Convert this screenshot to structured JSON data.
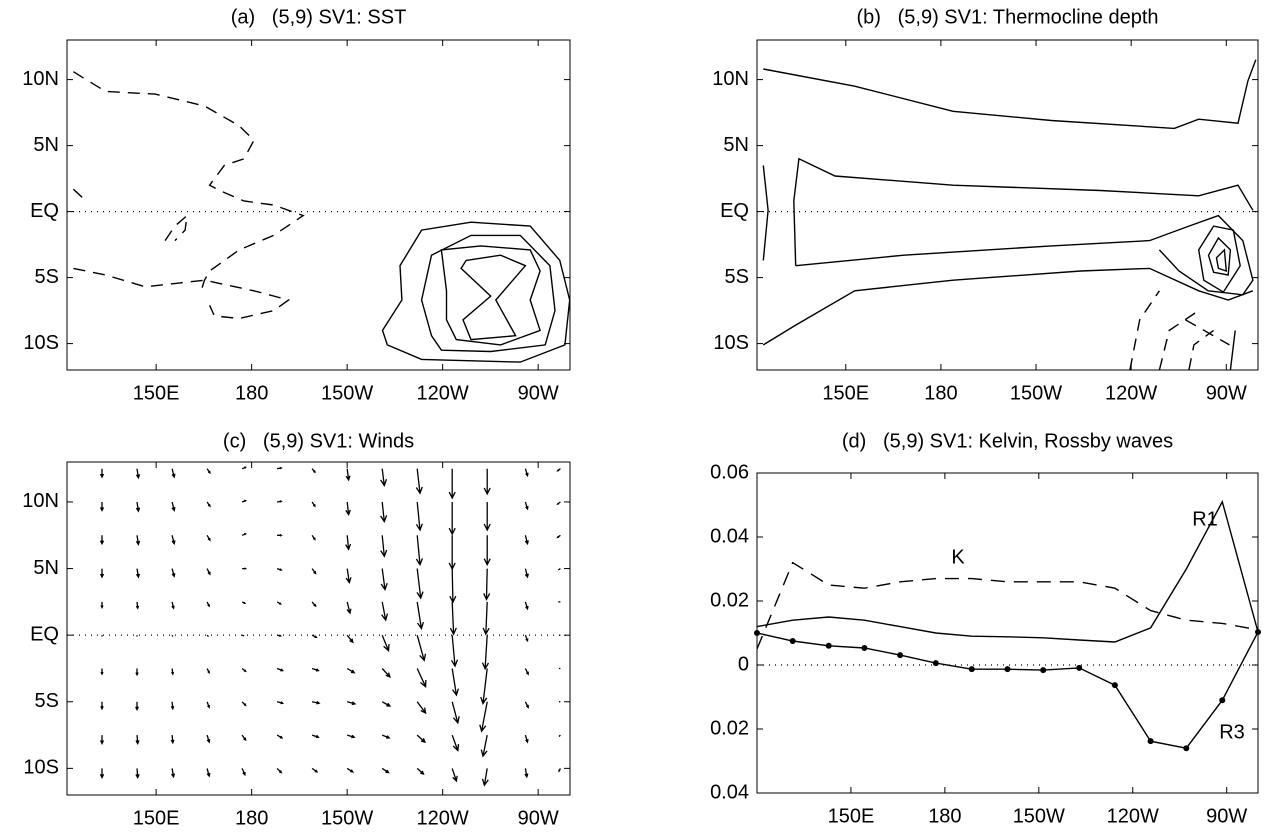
{
  "chart_data": [
    {
      "type": "contour",
      "title": "(a)   (5,9) SV1: SST",
      "color": "#000000",
      "xlim": [
        122,
        280
      ],
      "ylim": [
        -12,
        13
      ],
      "xticks": [
        {
          "value": 150,
          "label": "150E"
        },
        180,
        {
          "value": 210,
          "label": "150W"
        },
        {
          "value": 240,
          "label": "120W"
        },
        {
          "value": 270,
          "label": "90W"
        }
      ],
      "yticks": [
        {
          "value": 10,
          "label": "10N"
        },
        {
          "value": 5,
          "label": "5N"
        },
        {
          "value": 0,
          "label": "EQ"
        },
        {
          "value": -5,
          "label": "5S"
        },
        {
          "value": -10,
          "label": "10S"
        }
      ],
      "dotted_zero_line": true,
      "contours": [
        {
          "style": "dashed",
          "closed": false,
          "lon": [
            124,
            128,
            134.2,
            149.7,
            165.2,
            176.1,
            180.7,
            177.6,
            171.4,
            166.8,
            169.9,
            177.6,
            186.9,
            196.2,
            186.9,
            176.1,
            166.8,
            165.2,
            163.7
          ],
          "lat": [
            10.6,
            10.0,
            9.1,
            8.9,
            8.0,
            6.5,
            5.4,
            4.0,
            3.5,
            2.0,
            1.6,
            0.8,
            0.5,
            -0.3,
            -1.8,
            -2.9,
            -4.5,
            -5.2,
            -6.3
          ]
        },
        {
          "style": "dashed",
          "closed": false,
          "lon": [
            124,
            134.2,
            146.6,
            157.5,
            165.2,
            180.7,
            191.6,
            186.9,
            176.1,
            168.3,
            166.8
          ],
          "lat": [
            -4.3,
            -4.8,
            -5.7,
            -5.4,
            -5.2,
            -6.0,
            -6.7,
            -7.5,
            -8.1,
            -7.9,
            -7.1
          ]
        },
        {
          "style": "dashed",
          "closed": false,
          "lon": [
            152.8,
            155.9,
            159.7,
            159.1,
            155.9
          ],
          "lat": [
            -2.2,
            -1.1,
            -0.3,
            -1.4,
            -2.2
          ]
        },
        {
          "style": "dashed",
          "closed": false,
          "lon": [
            124,
            128
          ],
          "lat": [
            1.7,
            0.8
          ]
        },
        {
          "style": "solid",
          "closed": true,
          "lon": [
            221.1,
            227.2,
            226.6,
            233.4,
            248.9,
            267.5,
            276.8,
            279.9,
            278.4,
            264.4,
            233.4,
            222.6
          ],
          "lat": [
            -9.0,
            -6.7,
            -4.1,
            -1.4,
            -0.8,
            -1.1,
            -3.7,
            -6.7,
            -10.1,
            -11.4,
            -11.2,
            -10.1
          ]
        },
        {
          "style": "solid",
          "closed": true,
          "lon": [
            236.5,
            233.4,
            236.5,
            248.9,
            264.4,
            273.7,
            275.3,
            272.2,
            255.1,
            239.6
          ],
          "lat": [
            -9.4,
            -6.7,
            -3.3,
            -1.8,
            -1.8,
            -4.1,
            -7.5,
            -10.1,
            -10.6,
            -10.5
          ]
        },
        {
          "style": "solid",
          "closed": true,
          "lon": [
            241.2,
            241.2,
            239.6,
            252.0,
            267.5,
            270.6,
            267.5,
            270.6,
            258.2,
            244.3
          ],
          "lat": [
            -8.2,
            -6.0,
            -2.9,
            -2.6,
            -2.9,
            -4.5,
            -6.7,
            -9.0,
            -10.1,
            -9.7
          ]
        },
        {
          "style": "solid",
          "closed": true,
          "lon": [
            247.4,
            258.2,
            266.0,
            256.7,
            262.9,
            248.9,
            246.4,
            255.1,
            245.8
          ],
          "lat": [
            -3.7,
            -3.3,
            -4.1,
            -6.7,
            -9.4,
            -9.7,
            -8.2,
            -6.4,
            -4.3
          ]
        }
      ]
    },
    {
      "type": "contour",
      "title": "(b)   (5,9) SV1: Thermocline depth",
      "color": "#000000",
      "xlim": [
        122,
        280
      ],
      "ylim": [
        -12,
        13
      ],
      "xticks": [
        {
          "value": 150,
          "label": "150E"
        },
        180,
        {
          "value": 210,
          "label": "150W"
        },
        {
          "value": 240,
          "label": "120W"
        },
        {
          "value": 270,
          "label": "90W"
        }
      ],
      "yticks": [
        {
          "value": 10,
          "label": "10N"
        },
        {
          "value": 5,
          "label": "5N"
        },
        {
          "value": 0,
          "label": "EQ"
        },
        {
          "value": -5,
          "label": "5S"
        },
        {
          "value": -10,
          "label": "10S"
        }
      ],
      "dotted_zero_line": true,
      "contours": [
        {
          "style": "solid",
          "closed": false,
          "lon": [
            124,
            152.8,
            183.8,
            214.8,
            253.6,
            261.3,
            273.7,
            276.8,
            279.3
          ],
          "lat": [
            10.8,
            9.5,
            7.6,
            6.9,
            6.3,
            7.0,
            6.7,
            9.9,
            11.5
          ]
        },
        {
          "style": "solid",
          "closed": false,
          "lon": [
            134.2,
            133.6,
            135.2,
            146.6,
            183.8,
            230.3,
            261.3,
            273.7,
            278.4
          ],
          "lat": [
            -4.1,
            0.8,
            4.0,
            2.7,
            2.0,
            1.6,
            1.2,
            2.0,
            0.1
          ]
        },
        {
          "style": "solid",
          "closed": false,
          "lon": [
            134.2,
            168.3,
            214.8,
            245.8,
            258.2,
            267.5,
            275.2,
            278.4,
            275.2,
            264.3,
            255.1,
            248.9
          ],
          "lat": [
            -4.1,
            -3.3,
            -2.6,
            -2.2,
            -1.1,
            -0.3,
            -2.2,
            -5.2,
            -6.3,
            -6.0,
            -4.5,
            -2.9
          ]
        },
        {
          "style": "solid",
          "closed": false,
          "lon": [
            124,
            134.2,
            152.8,
            183.8,
            224.1,
            245.8,
            261.3,
            270.6,
            278.4
          ],
          "lat": [
            -10.1,
            -8.6,
            -6.0,
            -5.2,
            -4.5,
            -4.3,
            -6.0,
            -6.7,
            -6.0
          ]
        },
        {
          "style": "solid",
          "closed": true,
          "lon": [
            261.3,
            266.0,
            272.2,
            274.4,
            269.1,
            262.9
          ],
          "lat": [
            -2.9,
            -1.1,
            -1.4,
            -4.1,
            -6.1,
            -5.2
          ]
        },
        {
          "style": "solid",
          "closed": true,
          "lon": [
            264.4,
            267.5,
            271.3,
            270.6,
            266.0
          ],
          "lat": [
            -3.3,
            -2.0,
            -2.9,
            -4.8,
            -4.6
          ]
        },
        {
          "style": "solid",
          "closed": true,
          "lon": [
            266.9,
            269.4,
            270.0,
            267.5
          ],
          "lat": [
            -3.5,
            -2.9,
            -4.5,
            -4.3
          ]
        },
        {
          "style": "solid",
          "closed": false,
          "lon": [
            124,
            125.5,
            124
          ],
          "lat": [
            3.5,
            0.1,
            -3.7
          ]
        },
        {
          "style": "dashed",
          "closed": false,
          "lon": [
            239.6,
            242.7,
            248.9
          ],
          "lat": [
            -12.0,
            -8.2,
            -6.0
          ]
        },
        {
          "style": "dashed",
          "closed": false,
          "lon": [
            248.9,
            252.0,
            261.3
          ],
          "lat": [
            -12.0,
            -9.0,
            -7.5
          ]
        },
        {
          "style": "dashed",
          "closed": false,
          "lon": [
            258.2,
            259.8,
            266.0
          ],
          "lat": [
            -12.0,
            -10.1,
            -9.0
          ]
        },
        {
          "style": "dashed",
          "closed": false,
          "lon": [
            257.1,
            271.0
          ],
          "lat": [
            -8.2,
            -10.1
          ]
        },
        {
          "style": "solid",
          "closed": false,
          "lon": [
            271.3,
            272.8
          ],
          "lat": [
            -12.0,
            -9.0
          ]
        }
      ]
    },
    {
      "type": "quiver",
      "title": "(c)   (5,9) SV1: Winds",
      "color": "#000000",
      "xlim": [
        122,
        280
      ],
      "ylim": [
        -12,
        13
      ],
      "xticks": [
        {
          "value": 150,
          "label": "150E"
        },
        180,
        {
          "value": 210,
          "label": "150W"
        },
        {
          "value": 240,
          "label": "120W"
        },
        {
          "value": 270,
          "label": "90W"
        }
      ],
      "yticks": [
        {
          "value": 10,
          "label": "10N"
        },
        {
          "value": 5,
          "label": "5N"
        },
        {
          "value": 0,
          "label": "EQ"
        },
        {
          "value": -5,
          "label": "5S"
        },
        {
          "value": -10,
          "label": "10S"
        }
      ],
      "dotted_zero_line": true,
      "lon": [
        133,
        144,
        155,
        166,
        177,
        188,
        199,
        210,
        221,
        232,
        243,
        254,
        266,
        277
      ],
      "lat": [
        12.5,
        10,
        7.5,
        5,
        2.5,
        0,
        -2.5,
        -5,
        -7.5,
        -10,
        -12.5
      ],
      "u": [
        [
          0,
          0.2,
          0.3,
          0.4,
          0.5,
          0.6,
          0.4,
          0.2,
          0.3,
          0.4,
          0,
          0,
          0.3,
          -0.4
        ],
        [
          0,
          0.2,
          0.3,
          0.4,
          0.5,
          0.6,
          0.4,
          0.2,
          0.3,
          0.4,
          0,
          0,
          0.3,
          -0.4
        ],
        [
          0,
          0.2,
          0.3,
          0.4,
          0.5,
          0.6,
          0.4,
          0.2,
          0.3,
          0.4,
          0,
          0,
          0.3,
          -0.4
        ],
        [
          0,
          0.2,
          0.3,
          0.4,
          0.5,
          0.6,
          0.5,
          0.3,
          0.4,
          0.5,
          0.1,
          -0.1,
          0.3,
          -0.3
        ],
        [
          0,
          0.1,
          0.2,
          0.3,
          0.4,
          0.5,
          0.5,
          0.4,
          0.5,
          0.6,
          0.2,
          -0.2,
          0.3,
          -0.3
        ],
        [
          0,
          0,
          0.1,
          0.2,
          0.3,
          0.5,
          0.6,
          0.8,
          0.9,
          1.0,
          0.4,
          -0.3,
          0.3,
          -0.2
        ],
        [
          0,
          0,
          0.1,
          0.3,
          0.5,
          0.8,
          0.9,
          1.0,
          1.1,
          1.2,
          0.6,
          -0.6,
          0.4,
          -0.2
        ],
        [
          0,
          0,
          0.1,
          0.3,
          0.5,
          0.8,
          1.0,
          1.1,
          1.1,
          1.2,
          0.8,
          -0.8,
          0.4,
          -0.2
        ],
        [
          0,
          0.1,
          0.1,
          0.3,
          0.5,
          0.7,
          0.9,
          1.0,
          1.0,
          1.1,
          0.8,
          -0.6,
          0.3,
          -0.2
        ],
        [
          0,
          0.1,
          0.2,
          0.3,
          0.4,
          0.6,
          0.7,
          0.8,
          0.9,
          0.9,
          0.6,
          -0.4,
          0.2,
          -0.2
        ],
        [
          0,
          0.1,
          0.2,
          0.3,
          0.4,
          0.5,
          0.6,
          0.6,
          0.7,
          0.7,
          0.5,
          -0.3,
          0.2,
          -0.2
        ]
      ],
      "v": [
        [
          -1.2,
          -1.3,
          -1.2,
          -0.6,
          0.2,
          0.1,
          -0.5,
          -1.6,
          -2.4,
          -3.5,
          -4.2,
          -3.6,
          -1.0,
          -0.3
        ],
        [
          -1.2,
          -1.3,
          -1.2,
          -0.6,
          0.2,
          0.1,
          -0.6,
          -1.8,
          -2.8,
          -4.0,
          -4.6,
          -4.0,
          -1.0,
          -0.3
        ],
        [
          -1.2,
          -1.3,
          -1.2,
          -0.7,
          0.2,
          0,
          -0.6,
          -2.0,
          -3.0,
          -4.2,
          -4.8,
          -4.2,
          -1.2,
          -0.3
        ],
        [
          -1.2,
          -1.2,
          -1.1,
          -0.8,
          0,
          -0.2,
          -0.7,
          -2.0,
          -3.0,
          -4.2,
          -4.8,
          -4.4,
          -1.2,
          -0.2
        ],
        [
          -0.8,
          -0.9,
          -0.9,
          -0.6,
          -0.2,
          -0.3,
          -0.6,
          -1.6,
          -2.6,
          -3.8,
          -4.6,
          -4.6,
          -1.0,
          0
        ],
        [
          -0.2,
          -0.2,
          -0.2,
          -0.2,
          -0.1,
          -0.1,
          -0.3,
          -1.0,
          -2.2,
          -3.6,
          -4.4,
          -4.8,
          -0.8,
          0
        ],
        [
          -0.8,
          -0.9,
          -0.8,
          -0.6,
          -0.4,
          -0.3,
          -0.3,
          -0.6,
          -1.2,
          -2.6,
          -3.8,
          -5.0,
          -0.8,
          0
        ],
        [
          -1.0,
          -1.1,
          -1.0,
          -0.8,
          -0.5,
          -0.2,
          -0.2,
          -0.3,
          -0.6,
          -1.6,
          -3.0,
          -4.2,
          -0.8,
          0
        ],
        [
          -1.2,
          -1.2,
          -1.1,
          -1.0,
          -0.7,
          -0.4,
          -0.3,
          -0.3,
          -0.4,
          -1.0,
          -2.2,
          -3.0,
          -1.0,
          -0.2
        ],
        [
          -1.3,
          -1.3,
          -1.2,
          -1.1,
          -0.9,
          -0.6,
          -0.5,
          -0.5,
          -0.6,
          -0.8,
          -1.8,
          -2.4,
          -1.2,
          -0.4
        ],
        [
          -1.3,
          -1.3,
          -1.2,
          -1.1,
          -1.0,
          -0.8,
          -0.6,
          -0.6,
          -0.8,
          -1.0,
          -1.8,
          -2.2,
          -1.2,
          -0.5
        ]
      ]
    },
    {
      "type": "line",
      "title": "(d)   (5,9) SV1: Kelvin, Rossby waves",
      "xlim": [
        120,
        280
      ],
      "ylim": [
        -0.04,
        0.06
      ],
      "xticks": [
        {
          "value": 150,
          "label": "150E"
        },
        180,
        {
          "value": 210,
          "label": "150W"
        },
        {
          "value": 240,
          "label": "120W"
        },
        {
          "value": 270,
          "label": "90W"
        }
      ],
      "yticks": [
        0.06,
        0.04,
        0.02,
        0,
        {
          "value": -0.02,
          "label": "0.02"
        },
        {
          "value": -0.04,
          "label": "0.04"
        }
      ],
      "dotted_zero_line": true,
      "x": [
        120,
        131.4,
        142.9,
        154.3,
        165.7,
        177.1,
        188.6,
        200,
        211.4,
        222.9,
        234.3,
        245.7,
        257.1,
        268.6,
        280
      ],
      "series": [
        {
          "name": "K",
          "color": "#000000",
          "style": "dashed",
          "markers": false,
          "values": [
            0.005,
            0.032,
            0.025,
            0.024,
            0.026,
            0.027,
            0.027,
            0.026,
            0.026,
            0.026,
            0.024,
            0.017,
            0.014,
            0.013,
            0.011
          ]
        },
        {
          "name": "R1",
          "color": "#000000",
          "style": "solid",
          "markers": false,
          "values": [
            0.012,
            0.014,
            0.015,
            0.014,
            0.012,
            0.01,
            0.009,
            0.0088,
            0.0085,
            0.0078,
            0.0072,
            0.0116,
            0.03,
            0.051,
            0.0103
          ]
        },
        {
          "name": "R3",
          "color": "#000000",
          "style": "solid",
          "markers": true,
          "values": [
            0.01,
            0.0075,
            0.006,
            0.0053,
            0.0031,
            0.0006,
            -0.0013,
            -0.0013,
            -0.0016,
            -0.0009,
            -0.0063,
            -0.0238,
            -0.026,
            -0.011,
            0.0103
          ]
        }
      ]
    }
  ]
}
